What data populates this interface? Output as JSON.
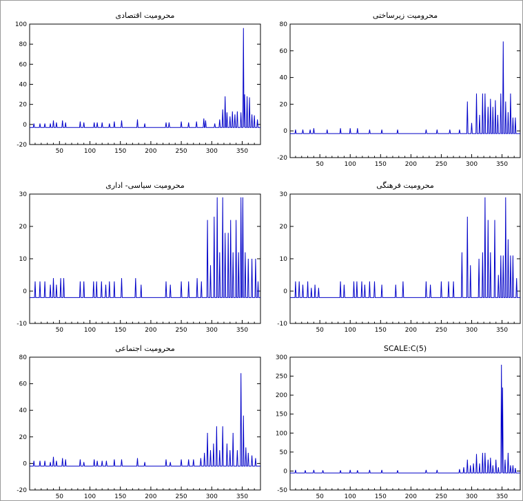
{
  "series_color": "#0000c8",
  "chart_data": [
    {
      "type": "line",
      "title": "محرومیت اقتصادی",
      "ylim": [
        -20,
        100
      ],
      "yticks": [
        -20,
        0,
        20,
        40,
        60,
        80,
        100
      ],
      "xlim": [
        1,
        380
      ],
      "xticks": [
        50,
        100,
        150,
        200,
        250,
        300,
        350
      ],
      "grid": false,
      "series": [
        {
          "baseline": -3,
          "peaks": [
            [
              8,
              1
            ],
            [
              18,
              1
            ],
            [
              26,
              1
            ],
            [
              35,
              1
            ],
            [
              40,
              4
            ],
            [
              45,
              2
            ],
            [
              55,
              4
            ],
            [
              60,
              2
            ],
            [
              84,
              3
            ],
            [
              90,
              2
            ],
            [
              107,
              2
            ],
            [
              112,
              2
            ],
            [
              120,
              2
            ],
            [
              132,
              1
            ],
            [
              140,
              3
            ],
            [
              152,
              4
            ],
            [
              178,
              5
            ],
            [
              190,
              1
            ],
            [
              225,
              2
            ],
            [
              230,
              2
            ],
            [
              250,
              3
            ],
            [
              262,
              2
            ],
            [
              275,
              3
            ],
            [
              287,
              6
            ],
            [
              290,
              4
            ],
            [
              305,
              1
            ],
            [
              313,
              5
            ],
            [
              318,
              15
            ],
            [
              322,
              28
            ],
            [
              325,
              12
            ],
            [
              330,
              8
            ],
            [
              334,
              13
            ],
            [
              338,
              10
            ],
            [
              342,
              13
            ],
            [
              348,
              12
            ],
            [
              352,
              96
            ],
            [
              354,
              30
            ],
            [
              358,
              28
            ],
            [
              362,
              27
            ],
            [
              366,
              10
            ],
            [
              370,
              9
            ],
            [
              375,
              5
            ]
          ]
        }
      ]
    },
    {
      "type": "line",
      "title": "محرومیت زیرساختی",
      "ylim": [
        -20,
        80
      ],
      "yticks": [
        -20,
        0,
        20,
        40,
        60,
        80
      ],
      "xlim": [
        1,
        380
      ],
      "xticks": [
        50,
        100,
        150,
        200,
        250,
        300,
        350
      ],
      "grid": false,
      "series": [
        {
          "baseline": -2,
          "peaks": [
            [
              10,
              1
            ],
            [
              22,
              1
            ],
            [
              34,
              1
            ],
            [
              40,
              2
            ],
            [
              62,
              1
            ],
            [
              84,
              2
            ],
            [
              100,
              2
            ],
            [
              112,
              2
            ],
            [
              132,
              1
            ],
            [
              152,
              1
            ],
            [
              178,
              1
            ],
            [
              225,
              1
            ],
            [
              243,
              1
            ],
            [
              264,
              1
            ],
            [
              280,
              1
            ],
            [
              293,
              22
            ],
            [
              300,
              6
            ],
            [
              308,
              28
            ],
            [
              313,
              12
            ],
            [
              318,
              28
            ],
            [
              322,
              28
            ],
            [
              327,
              18
            ],
            [
              331,
              24
            ],
            [
              335,
              18
            ],
            [
              339,
              23
            ],
            [
              343,
              12
            ],
            [
              348,
              28
            ],
            [
              352,
              67
            ],
            [
              356,
              22
            ],
            [
              360,
              14
            ],
            [
              364,
              28
            ],
            [
              368,
              10
            ],
            [
              372,
              10
            ]
          ]
        }
      ]
    },
    {
      "type": "line",
      "title": "محرومیت سیاسی- اداری",
      "ylim": [
        -10,
        30
      ],
      "yticks": [
        -10,
        0,
        10,
        20,
        30
      ],
      "xlim": [
        1,
        380
      ],
      "xticks": [
        50,
        100,
        150,
        200,
        250,
        300,
        350
      ],
      "grid": false,
      "series": [
        {
          "baseline": -2,
          "peaks": [
            [
              10,
              3
            ],
            [
              18,
              3
            ],
            [
              26,
              3
            ],
            [
              35,
              2
            ],
            [
              40,
              4
            ],
            [
              45,
              2
            ],
            [
              52,
              4
            ],
            [
              57,
              4
            ],
            [
              84,
              3
            ],
            [
              90,
              3
            ],
            [
              106,
              3
            ],
            [
              111,
              3
            ],
            [
              119,
              3
            ],
            [
              126,
              2
            ],
            [
              132,
              3
            ],
            [
              140,
              3
            ],
            [
              152,
              4
            ],
            [
              175,
              4
            ],
            [
              184,
              2
            ],
            [
              225,
              3
            ],
            [
              232,
              2
            ],
            [
              250,
              3
            ],
            [
              262,
              3
            ],
            [
              276,
              4
            ],
            [
              283,
              3
            ],
            [
              293,
              22
            ],
            [
              298,
              8
            ],
            [
              304,
              23
            ],
            [
              309,
              29
            ],
            [
              313,
              12
            ],
            [
              318,
              29
            ],
            [
              322,
              18
            ],
            [
              327,
              18
            ],
            [
              331,
              22
            ],
            [
              335,
              12
            ],
            [
              340,
              22
            ],
            [
              344,
              12
            ],
            [
              348,
              29
            ],
            [
              351,
              29
            ],
            [
              355,
              12
            ],
            [
              360,
              10
            ],
            [
              366,
              10
            ],
            [
              372,
              10
            ],
            [
              376,
              3
            ]
          ]
        }
      ]
    },
    {
      "type": "line",
      "title": "محرومیت فرهنگی",
      "ylim": [
        -10,
        30
      ],
      "yticks": [
        -10,
        0,
        10,
        20,
        30
      ],
      "xlim": [
        1,
        380
      ],
      "xticks": [
        50,
        100,
        150,
        200,
        250,
        300,
        350
      ],
      "grid": false,
      "series": [
        {
          "baseline": -2,
          "peaks": [
            [
              10,
              3
            ],
            [
              16,
              3
            ],
            [
              22,
              2
            ],
            [
              30,
              3
            ],
            [
              36,
              1
            ],
            [
              42,
              2
            ],
            [
              48,
              1
            ],
            [
              84,
              3
            ],
            [
              90,
              2
            ],
            [
              106,
              3
            ],
            [
              111,
              3
            ],
            [
              119,
              3
            ],
            [
              124,
              2
            ],
            [
              132,
              3
            ],
            [
              140,
              3
            ],
            [
              152,
              2
            ],
            [
              175,
              2
            ],
            [
              187,
              3
            ],
            [
              225,
              3
            ],
            [
              232,
              2
            ],
            [
              250,
              3
            ],
            [
              262,
              3
            ],
            [
              270,
              3
            ],
            [
              284,
              12
            ],
            [
              293,
              23
            ],
            [
              298,
              8
            ],
            [
              312,
              10
            ],
            [
              318,
              12
            ],
            [
              322,
              29
            ],
            [
              327,
              22
            ],
            [
              331,
              12
            ],
            [
              338,
              22
            ],
            [
              344,
              5
            ],
            [
              348,
              11
            ],
            [
              352,
              11
            ],
            [
              356,
              29
            ],
            [
              360,
              16
            ],
            [
              364,
              11
            ],
            [
              368,
              11
            ],
            [
              374,
              4
            ]
          ]
        }
      ]
    },
    {
      "type": "line",
      "title": "محرومیت اجتماعی",
      "ylim": [
        -20,
        80
      ],
      "yticks": [
        -20,
        0,
        20,
        40,
        60,
        80
      ],
      "xlim": [
        1,
        380
      ],
      "xticks": [
        50,
        100,
        150,
        200,
        250,
        300,
        350
      ],
      "grid": false,
      "series": [
        {
          "baseline": -2,
          "peaks": [
            [
              8,
              2
            ],
            [
              18,
              2
            ],
            [
              26,
              2
            ],
            [
              35,
              1
            ],
            [
              40,
              5
            ],
            [
              45,
              2
            ],
            [
              55,
              4
            ],
            [
              60,
              3
            ],
            [
              84,
              3
            ],
            [
              90,
              1
            ],
            [
              107,
              3
            ],
            [
              112,
              2
            ],
            [
              120,
              2
            ],
            [
              127,
              2
            ],
            [
              140,
              3
            ],
            [
              152,
              3
            ],
            [
              178,
              4
            ],
            [
              190,
              1
            ],
            [
              225,
              3
            ],
            [
              232,
              1
            ],
            [
              250,
              3
            ],
            [
              262,
              3
            ],
            [
              270,
              3
            ],
            [
              282,
              4
            ],
            [
              288,
              8
            ],
            [
              293,
              23
            ],
            [
              298,
              10
            ],
            [
              303,
              15
            ],
            [
              308,
              28
            ],
            [
              313,
              10
            ],
            [
              318,
              28
            ],
            [
              325,
              15
            ],
            [
              330,
              10
            ],
            [
              335,
              23
            ],
            [
              342,
              10
            ],
            [
              348,
              68
            ],
            [
              352,
              36
            ],
            [
              356,
              12
            ],
            [
              360,
              8
            ],
            [
              366,
              6
            ],
            [
              372,
              4
            ]
          ]
        }
      ]
    },
    {
      "type": "line",
      "title": "SCALE:C(5)",
      "ylim": [
        -50,
        300
      ],
      "yticks": [
        -50,
        0,
        50,
        100,
        150,
        200,
        250,
        300
      ],
      "xlim": [
        1,
        380
      ],
      "xticks": [
        50,
        100,
        150,
        200,
        250,
        300,
        350
      ],
      "grid": false,
      "series": [
        {
          "baseline": -5,
          "peaks": [
            [
              10,
              3
            ],
            [
              26,
              2
            ],
            [
              40,
              3
            ],
            [
              55,
              2
            ],
            [
              84,
              2
            ],
            [
              100,
              3
            ],
            [
              112,
              2
            ],
            [
              132,
              3
            ],
            [
              152,
              3
            ],
            [
              178,
              2
            ],
            [
              225,
              3
            ],
            [
              243,
              3
            ],
            [
              280,
              5
            ],
            [
              287,
              10
            ],
            [
              293,
              30
            ],
            [
              298,
              15
            ],
            [
              303,
              20
            ],
            [
              308,
              45
            ],
            [
              313,
              20
            ],
            [
              318,
              48
            ],
            [
              322,
              48
            ],
            [
              327,
              30
            ],
            [
              331,
              35
            ],
            [
              335,
              15
            ],
            [
              340,
              30
            ],
            [
              344,
              10
            ],
            [
              349,
              280
            ],
            [
              351,
              220
            ],
            [
              355,
              30
            ],
            [
              360,
              48
            ],
            [
              364,
              15
            ],
            [
              368,
              15
            ],
            [
              372,
              8
            ]
          ]
        }
      ]
    }
  ]
}
